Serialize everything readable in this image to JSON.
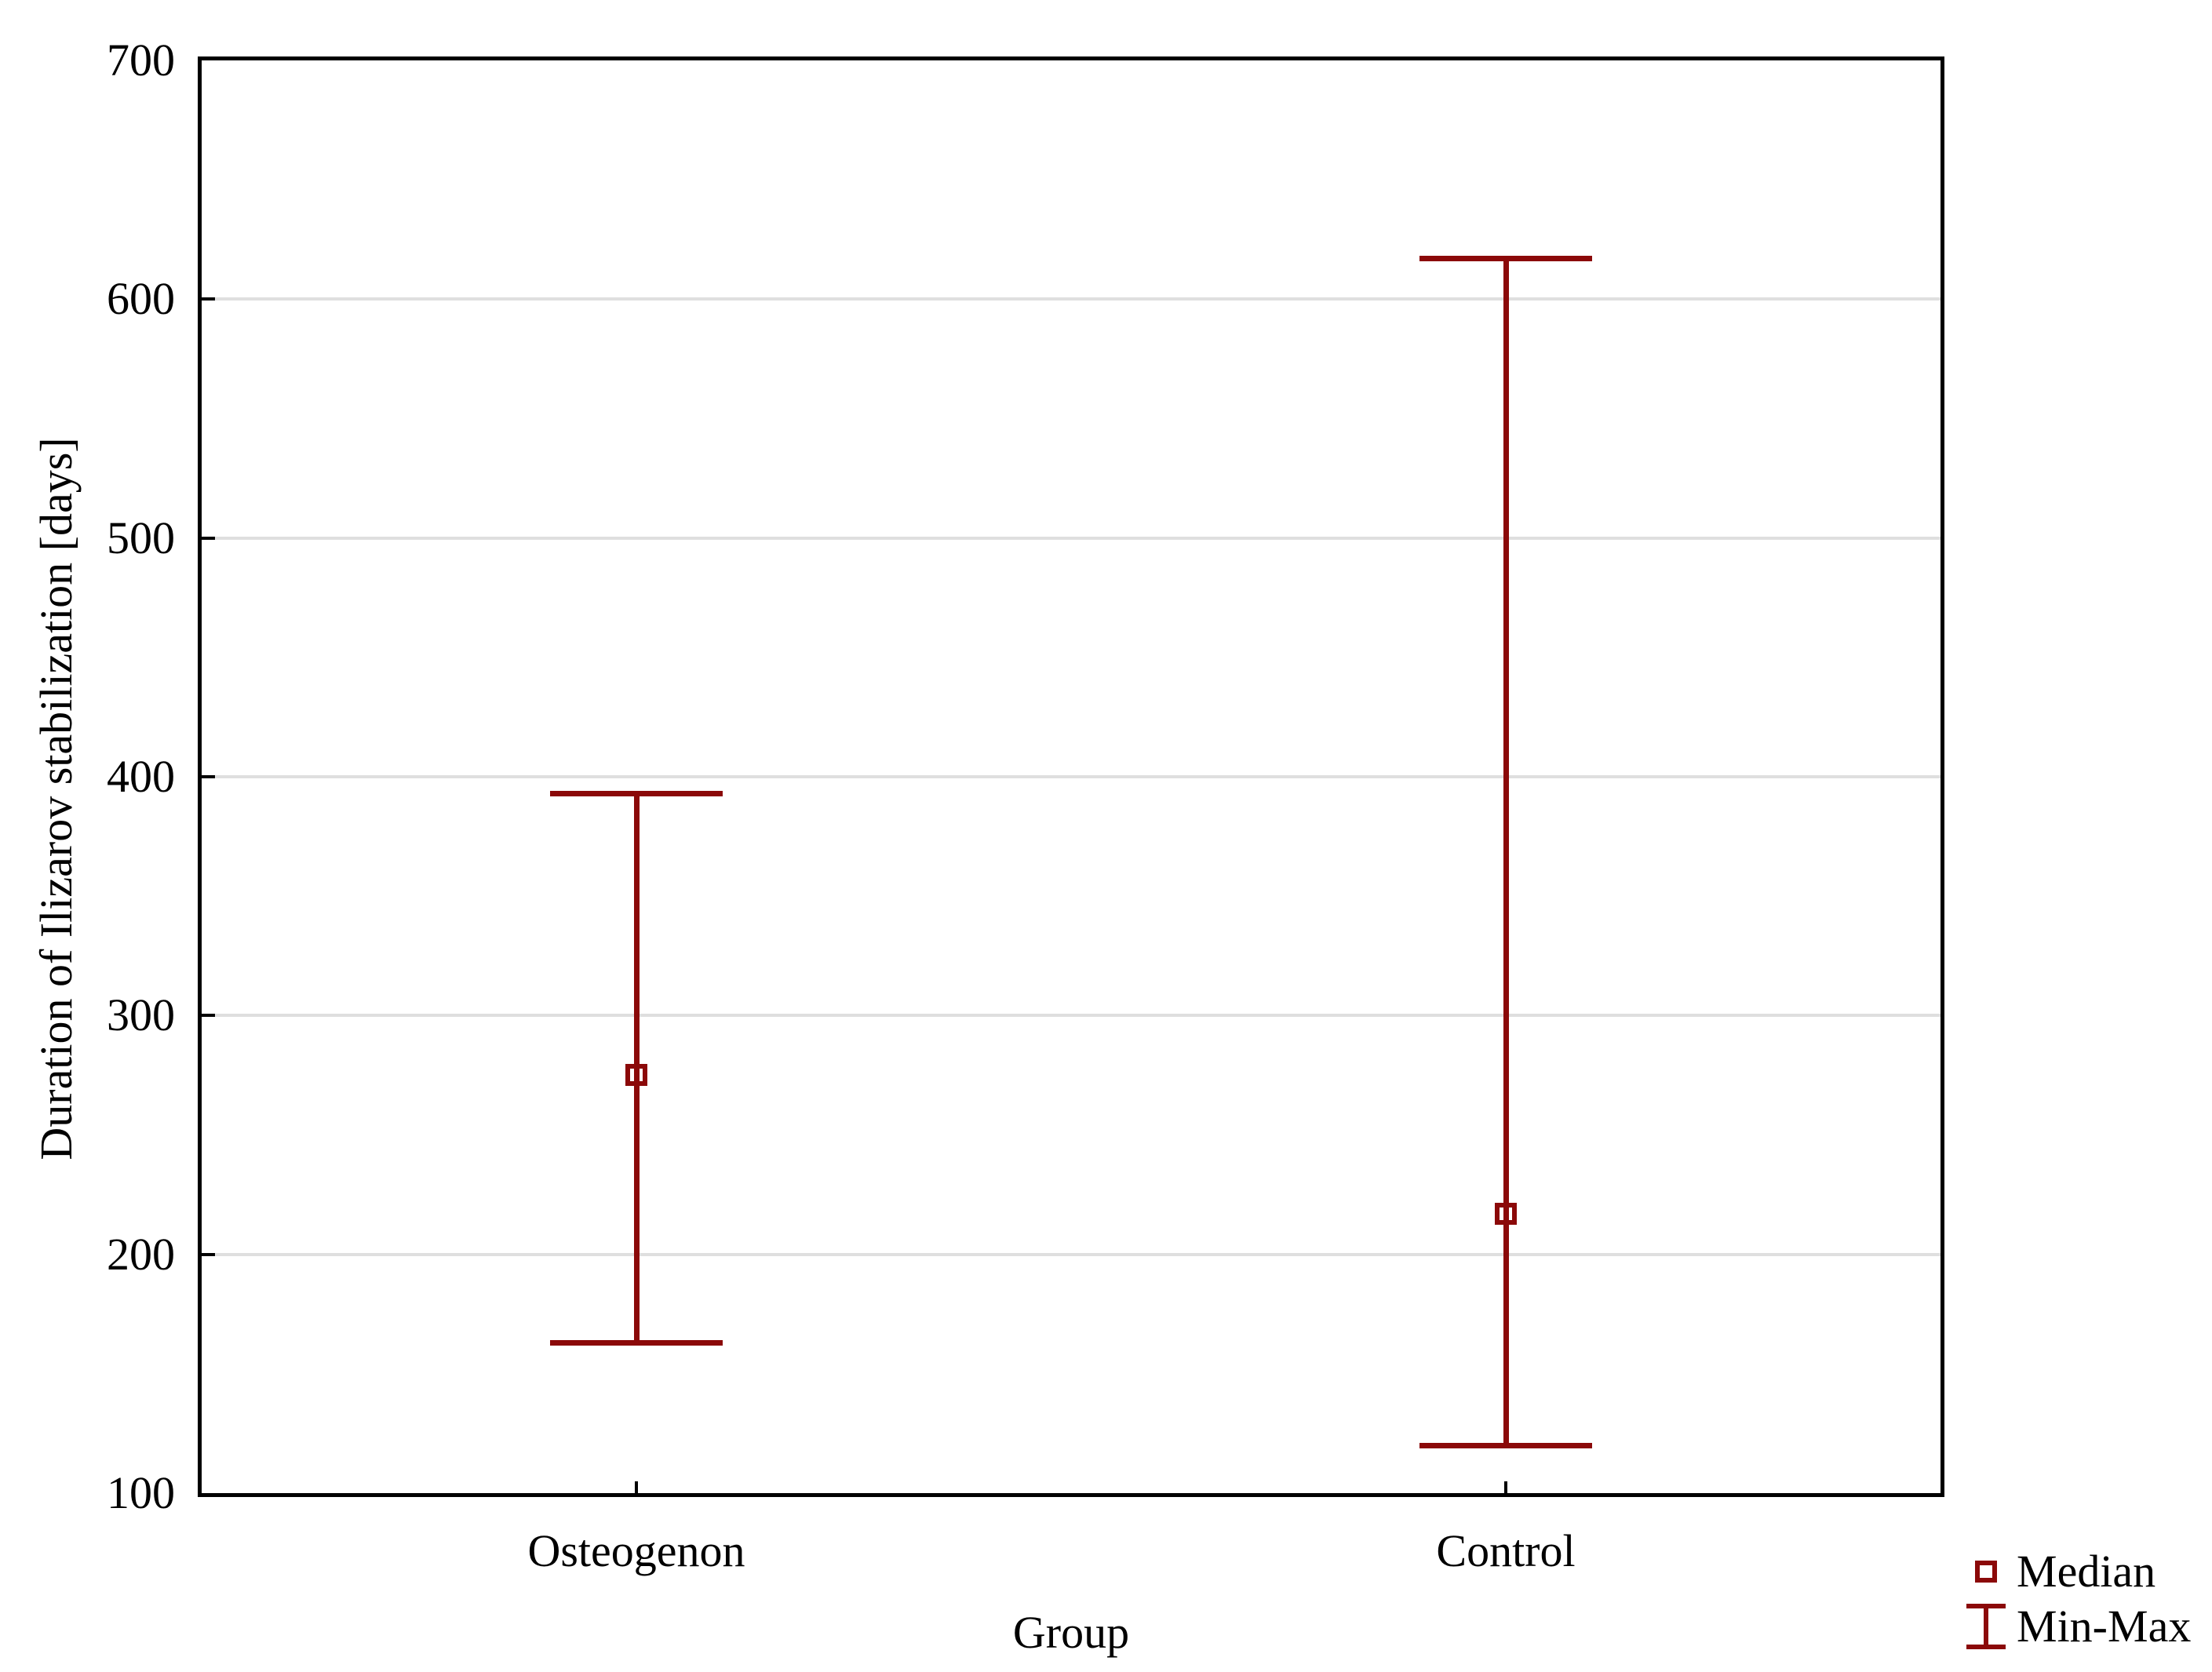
{
  "chart_data": {
    "type": "box-minmax",
    "title": "",
    "xlabel": "Group",
    "ylabel": "Duration of Ilizarov stabilization [days]",
    "ylim": [
      100,
      700
    ],
    "yticks": [
      100,
      200,
      300,
      400,
      500,
      600,
      700
    ],
    "grid": "horizontal-on",
    "legend_position": "bottom-right",
    "categories": [
      "Osteogenon",
      "Control"
    ],
    "series": [
      {
        "name": "Osteogenon",
        "median": 275,
        "min": 163,
        "max": 393
      },
      {
        "name": "Control",
        "median": 217,
        "min": 120,
        "max": 617
      }
    ]
  },
  "legend": {
    "items": [
      {
        "label": "Median",
        "marker": "open-square-icon"
      },
      {
        "label": "Min-Max",
        "marker": "error-bar-icon"
      }
    ]
  },
  "colors": {
    "series": "#8B0909",
    "grid": "#DFDFDF",
    "frame": "#000000",
    "text": "#000000",
    "background": "#FFFFFF"
  }
}
